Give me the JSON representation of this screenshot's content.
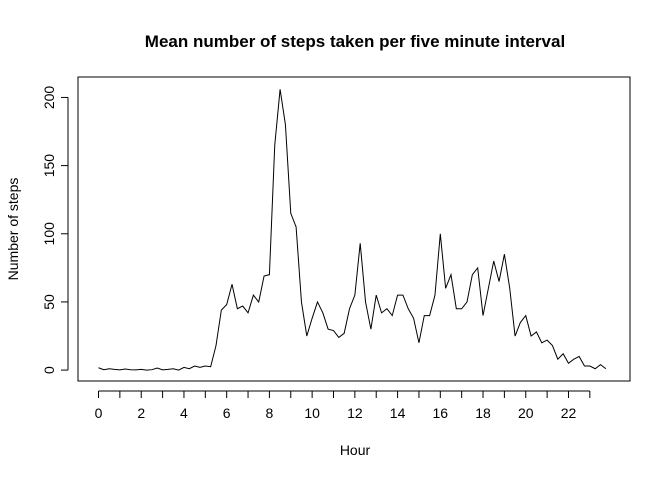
{
  "chart_data": {
    "type": "line",
    "title": "Mean number of steps taken per five minute interval",
    "x_label": "Hour",
    "y_label": "Number of steps",
    "x": [
      0,
      0.25,
      0.5,
      0.75,
      1,
      1.25,
      1.5,
      1.75,
      2,
      2.25,
      2.5,
      2.75,
      3,
      3.25,
      3.5,
      3.75,
      4,
      4.25,
      4.5,
      4.75,
      5,
      5.25,
      5.5,
      5.75,
      6,
      6.25,
      6.5,
      6.75,
      7,
      7.25,
      7.5,
      7.75,
      8,
      8.25,
      8.5,
      8.75,
      9,
      9.25,
      9.5,
      9.75,
      10,
      10.25,
      10.5,
      10.75,
      11,
      11.25,
      11.5,
      11.75,
      12,
      12.25,
      12.5,
      12.75,
      13,
      13.25,
      13.5,
      13.75,
      14,
      14.25,
      14.5,
      14.75,
      15,
      15.25,
      15.5,
      15.75,
      16,
      16.25,
      16.5,
      16.75,
      17,
      17.25,
      17.5,
      17.75,
      18,
      18.25,
      18.5,
      18.75,
      19,
      19.25,
      19.5,
      19.75,
      20,
      20.25,
      20.5,
      20.75,
      21,
      21.25,
      21.5,
      21.75,
      22,
      22.25,
      22.5,
      22.75,
      23,
      23.25,
      23.5,
      23.75
    ],
    "values": [
      1.7,
      0.3,
      1,
      0.5,
      0.2,
      0.8,
      0.3,
      0.2,
      0.5,
      0,
      0.3,
      1.5,
      0.2,
      0.5,
      1,
      0,
      2,
      1,
      3,
      2,
      3,
      2.5,
      18,
      44,
      48,
      63,
      45,
      47,
      42,
      55,
      50,
      69,
      70,
      165,
      206,
      180,
      115,
      105,
      50,
      25,
      38,
      50,
      42,
      30,
      29,
      24,
      27,
      45,
      55,
      93,
      50,
      30,
      55,
      42,
      45,
      40,
      55,
      55,
      45,
      38,
      20,
      40,
      40,
      55,
      100,
      60,
      70,
      45,
      45,
      50,
      70,
      75,
      40,
      60,
      80,
      65,
      85,
      60,
      25,
      35,
      40,
      25,
      28,
      20,
      22,
      18,
      8,
      12,
      5,
      8,
      10,
      3,
      3,
      1,
      4,
      1
    ],
    "color": "#000000",
    "xlim": [
      -0.96,
      24.88
    ],
    "ylim": [
      -8,
      215
    ],
    "xticks": [
      0,
      2,
      4,
      6,
      8,
      10,
      12,
      14,
      16,
      18,
      20,
      22
    ],
    "xminorticks": [
      1,
      3,
      5,
      7,
      9,
      11,
      13,
      15,
      17,
      19,
      21,
      23
    ],
    "yticks": [
      0,
      50,
      100,
      150,
      200
    ],
    "grid": false
  }
}
